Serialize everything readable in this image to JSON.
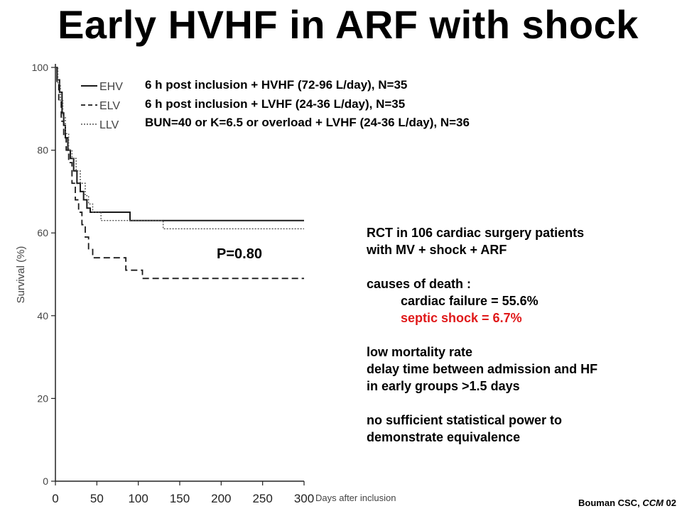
{
  "title": "Early HVHF in ARF with shock",
  "chart_data": {
    "type": "line",
    "ylabel": "Survival (%)",
    "xlabel": "Days after inclusion",
    "xlim": [
      0,
      300
    ],
    "ylim": [
      0,
      100
    ],
    "x_ticks": [
      "0",
      "50",
      "100",
      "150",
      "200",
      "250",
      "300"
    ],
    "y_ticks": [
      "0",
      "20",
      "40",
      "60",
      "80",
      "100"
    ],
    "annotation": "P=0.80",
    "series": [
      {
        "name": "EHV",
        "style": "solid",
        "x": [
          0,
          2,
          5,
          8,
          10,
          12,
          15,
          18,
          22,
          26,
          30,
          34,
          38,
          42,
          48,
          90,
          300
        ],
        "y": [
          100,
          97,
          94,
          89,
          86,
          83,
          80,
          78,
          75,
          72,
          70,
          68,
          66,
          65,
          65,
          63,
          63
        ]
      },
      {
        "name": "ELV",
        "style": "dashed",
        "x": [
          0,
          2,
          4,
          7,
          10,
          13,
          16,
          20,
          24,
          28,
          32,
          36,
          40,
          45,
          50,
          70,
          85,
          95,
          105,
          300
        ],
        "y": [
          100,
          96,
          92,
          87,
          83,
          80,
          77,
          72,
          68,
          65,
          62,
          59,
          56,
          54,
          54,
          54,
          51,
          51,
          49,
          49
        ]
      },
      {
        "name": "LLV",
        "style": "dotted",
        "x": [
          0,
          3,
          6,
          9,
          12,
          16,
          20,
          25,
          30,
          36,
          40,
          45,
          55,
          130,
          300
        ],
        "y": [
          100,
          96,
          92,
          88,
          84,
          80,
          78,
          75,
          72,
          69,
          67,
          65,
          63,
          61,
          61
        ]
      }
    ],
    "legend": [
      {
        "key": "EHV",
        "description": "6 h post inclusion + HVHF (72-96 L/day), N=35"
      },
      {
        "key": "ELV",
        "description": "6 h post inclusion + LVHF (24-36 L/day), N=35"
      },
      {
        "key": "LLV",
        "description": "BUN=40 or K=6.5 or overload + LVHF (24-36 L/day), N=36"
      }
    ],
    "grid": false,
    "legend_position": "top"
  },
  "notes": {
    "line1": "RCT  in 106 cardiac surgery patients",
    "line2": "with MV + shock + ARF",
    "line3": "causes of death :",
    "line4": "cardiac failure = 55.6%",
    "line5": "septic shock = 6.7%",
    "line6": "low mortality rate",
    "line7": "delay time between admission and HF",
    "line8": "in early groups >1.5 days",
    "line9": "no sufficient statistical power to",
    "line10": "demonstrate equivalence"
  },
  "citation_author": "Bouman CSC, ",
  "citation_journal": "CCM",
  "citation_year": " 02",
  "colors": {
    "text": "#000000",
    "highlight": "#e0191a",
    "grey_text": "#444444"
  }
}
